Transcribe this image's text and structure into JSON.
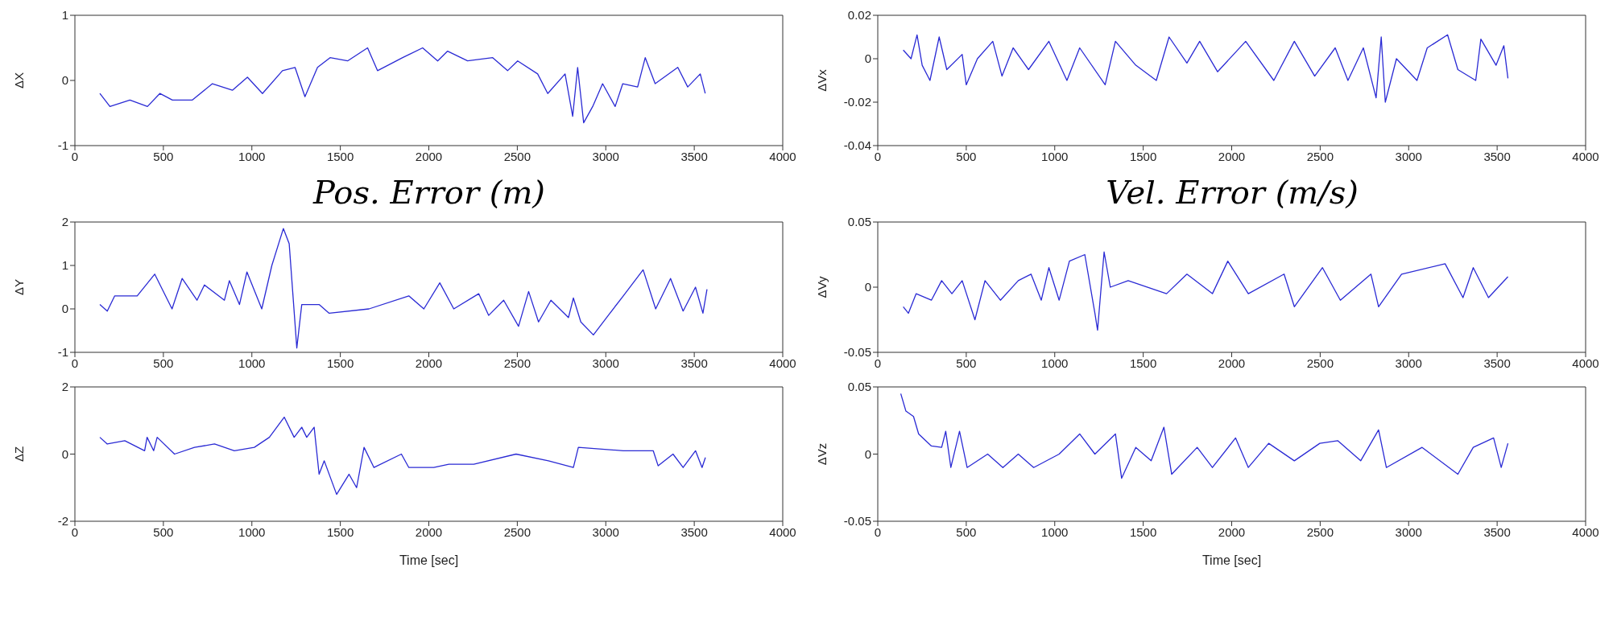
{
  "chart_data": [
    {
      "type": "line",
      "ylabel": "ΔX",
      "xlim": [
        0,
        4000
      ],
      "xticks": [
        0,
        500,
        1000,
        1500,
        2000,
        2500,
        3000,
        3500,
        4000
      ],
      "ylim": [
        -1,
        1
      ],
      "yticks": [
        -1,
        0,
        1
      ],
      "series": [
        {
          "color": "#2a2ad4",
          "x": [
            141,
            198,
            311,
            410,
            480,
            551,
            664,
            777,
            890,
            975,
            1060,
            1173,
            1244,
            1300,
            1371,
            1442,
            1541,
            1654,
            1710,
            1852,
            1965,
            2050,
            2106,
            2219,
            2361,
            2445,
            2502,
            2615,
            2672,
            2770,
            2813,
            2841,
            2875,
            2926,
            2982,
            3053,
            3096,
            3180,
            3223,
            3279,
            3407,
            3463,
            3534,
            3562
          ],
          "values": [
            -0.2,
            -0.4,
            -0.3,
            -0.4,
            -0.2,
            -0.3,
            -0.3,
            -0.05,
            -0.15,
            0.05,
            -0.2,
            0.15,
            0.2,
            -0.25,
            0.2,
            0.35,
            0.3,
            0.5,
            0.15,
            0.35,
            0.5,
            0.3,
            0.45,
            0.3,
            0.35,
            0.15,
            0.3,
            0.1,
            -0.2,
            0.1,
            -0.55,
            0.2,
            -0.65,
            -0.4,
            -0.05,
            -0.4,
            -0.05,
            -0.1,
            0.35,
            -0.05,
            0.2,
            -0.1,
            0.1,
            -0.2
          ]
        }
      ]
    },
    {
      "type": "line",
      "ylabel": "ΔVx",
      "xlim": [
        0,
        4000
      ],
      "xticks": [
        0,
        500,
        1000,
        1500,
        2000,
        2500,
        3000,
        3500,
        4000
      ],
      "ylim": [
        -0.04,
        0.02
      ],
      "yticks": [
        -0.04,
        -0.02,
        0,
        0.02
      ],
      "series": [
        {
          "color": "#2a2ad4",
          "x": [
            144,
            188,
            222,
            251,
            295,
            347,
            390,
            477,
            500,
            563,
            650,
            702,
            765,
            852,
            967,
            1069,
            1141,
            1285,
            1343,
            1458,
            1574,
            1646,
            1747,
            1819,
            1920,
            2079,
            2238,
            2354,
            2469,
            2585,
            2657,
            2744,
            2816,
            2845,
            2868,
            2931,
            3047,
            3105,
            3220,
            3278,
            3379,
            3408,
            3494,
            3538,
            3561
          ],
          "values": [
            0.004,
            0,
            0.011,
            -0.003,
            -0.01,
            0.01,
            -0.005,
            0.002,
            -0.012,
            0,
            0.008,
            -0.008,
            0.005,
            -0.005,
            0.008,
            -0.01,
            0.005,
            -0.012,
            0.008,
            -0.003,
            -0.01,
            0.01,
            -0.002,
            0.008,
            -0.006,
            0.008,
            -0.01,
            0.008,
            -0.008,
            0.005,
            -0.01,
            0.005,
            -0.018,
            0.01,
            -0.02,
            0,
            -0.01,
            0.005,
            0.011,
            -0.005,
            -0.01,
            0.009,
            -0.003,
            0.006,
            -0.009
          ]
        }
      ]
    },
    {
      "type": "line",
      "title": "Pos. Error (m)",
      "ylabel": "ΔY",
      "xlim": [
        0,
        4000
      ],
      "xticks": [
        0,
        500,
        1000,
        1500,
        2000,
        2500,
        3000,
        3500,
        4000
      ],
      "ylim": [
        -1,
        2
      ],
      "yticks": [
        -1,
        0,
        1,
        2
      ],
      "series": [
        {
          "color": "#2a2ad4",
          "x": [
            141,
            183,
            225,
            352,
            451,
            549,
            606,
            690,
            732,
            845,
            873,
            930,
            972,
            1056,
            1113,
            1178,
            1211,
            1254,
            1282,
            1380,
            1437,
            1662,
            1887,
            1972,
            2062,
            2141,
            2282,
            2338,
            2423,
            2507,
            2564,
            2620,
            2690,
            2789,
            2817,
            2859,
            2930,
            3014,
            3099,
            3211,
            3282,
            3366,
            3437,
            3507,
            3549,
            3572
          ],
          "values": [
            0.1,
            -0.05,
            0.3,
            0.3,
            0.8,
            0,
            0.7,
            0.2,
            0.55,
            0.2,
            0.65,
            0.1,
            0.85,
            0,
            1,
            1.85,
            1.5,
            -0.9,
            0.1,
            0.1,
            -0.1,
            0,
            0.3,
            0,
            0.6,
            0,
            0.35,
            -0.15,
            0.2,
            -0.4,
            0.4,
            -0.3,
            0.2,
            -0.2,
            0.25,
            -0.3,
            -0.6,
            -0.15,
            0.3,
            0.9,
            0,
            0.7,
            -0.05,
            0.5,
            -0.1,
            0.45
          ]
        }
      ]
    },
    {
      "type": "line",
      "title": "Vel. Error (m/s)",
      "ylabel": "ΔVy",
      "xlim": [
        0,
        4000
      ],
      "xticks": [
        0,
        500,
        1000,
        1500,
        2000,
        2500,
        3000,
        3500,
        4000
      ],
      "ylim": [
        -0.05,
        0.05
      ],
      "yticks": [
        -0.05,
        0,
        0.05
      ],
      "series": [
        {
          "color": "#2a2ad4",
          "x": [
            144,
            173,
            217,
            303,
            361,
            419,
            477,
            549,
            606,
            693,
            794,
            866,
            924,
            967,
            1025,
            1083,
            1170,
            1227,
            1242,
            1279,
            1314,
            1415,
            1632,
            1747,
            1891,
            1978,
            2094,
            2296,
            2354,
            2513,
            2614,
            2787,
            2830,
            2960,
            3206,
            3307,
            3365,
            3451,
            3561
          ],
          "values": [
            -0.015,
            -0.02,
            -0.005,
            -0.01,
            0.005,
            -0.005,
            0.005,
            -0.025,
            0.005,
            -0.01,
            0.005,
            0.01,
            -0.01,
            0.015,
            -0.01,
            0.02,
            0.025,
            -0.02,
            -0.033,
            0.027,
            0,
            0.005,
            -0.005,
            0.01,
            -0.005,
            0.02,
            -0.005,
            0.01,
            -0.015,
            0.015,
            -0.01,
            0.01,
            -0.015,
            0.01,
            0.018,
            -0.008,
            0.015,
            -0.008,
            0.008
          ]
        }
      ]
    },
    {
      "type": "line",
      "ylabel": "ΔZ",
      "xlabel": "Time [sec]",
      "xlim": [
        0,
        4000
      ],
      "xticks": [
        0,
        500,
        1000,
        1500,
        2000,
        2500,
        3000,
        3500,
        4000
      ],
      "ylim": [
        -2,
        2
      ],
      "yticks": [
        -2,
        0,
        2
      ],
      "series": [
        {
          "color": "#2a2ad4",
          "x": [
            141,
            183,
            282,
            394,
            408,
            445,
            465,
            563,
            676,
            789,
            901,
            1014,
            1099,
            1183,
            1239,
            1282,
            1310,
            1352,
            1380,
            1409,
            1479,
            1549,
            1592,
            1634,
            1690,
            1845,
            1887,
            2028,
            2113,
            2254,
            2493,
            2676,
            2817,
            2845,
            3099,
            3268,
            3296,
            3380,
            3437,
            3507,
            3544,
            3563
          ],
          "values": [
            0.5,
            0.3,
            0.4,
            0.1,
            0.5,
            0.1,
            0.5,
            0,
            0.2,
            0.3,
            0.1,
            0.2,
            0.5,
            1.1,
            0.5,
            0.8,
            0.5,
            0.8,
            -0.6,
            -0.2,
            -1.2,
            -0.6,
            -1,
            0.2,
            -0.4,
            0,
            -0.4,
            -0.4,
            -0.3,
            -0.3,
            0,
            -0.2,
            -0.4,
            0.2,
            0.1,
            0.1,
            -0.35,
            0,
            -0.4,
            0.1,
            -0.4,
            -0.1
          ]
        }
      ]
    },
    {
      "type": "line",
      "ylabel": "ΔVz",
      "xlabel": "Time [sec]",
      "xlim": [
        0,
        4000
      ],
      "xticks": [
        0,
        500,
        1000,
        1500,
        2000,
        2500,
        3000,
        3500,
        4000
      ],
      "ylim": [
        -0.05,
        0.05
      ],
      "yticks": [
        -0.05,
        0,
        0.05
      ],
      "series": [
        {
          "color": "#2a2ad4",
          "x": [
            130,
            159,
            202,
            231,
            303,
            361,
            384,
            413,
            462,
            505,
            621,
            707,
            794,
            881,
            1025,
            1141,
            1227,
            1343,
            1378,
            1458,
            1545,
            1617,
            1661,
            1805,
            1891,
            2022,
            2094,
            2209,
            2354,
            2498,
            2599,
            2729,
            2830,
            2874,
            3076,
            3278,
            3365,
            3480,
            3523,
            3561
          ],
          "values": [
            0.045,
            0.032,
            0.028,
            0.015,
            0.006,
            0.005,
            0.017,
            -0.01,
            0.017,
            -0.01,
            0,
            -0.01,
            0,
            -0.01,
            0,
            0.015,
            0,
            0.015,
            -0.018,
            0.005,
            -0.005,
            0.02,
            -0.015,
            0.005,
            -0.01,
            0.012,
            -0.01,
            0.008,
            -0.005,
            0.008,
            0.01,
            -0.005,
            0.018,
            -0.01,
            0.005,
            -0.015,
            0.005,
            0.012,
            -0.01,
            0.008
          ]
        }
      ]
    }
  ]
}
